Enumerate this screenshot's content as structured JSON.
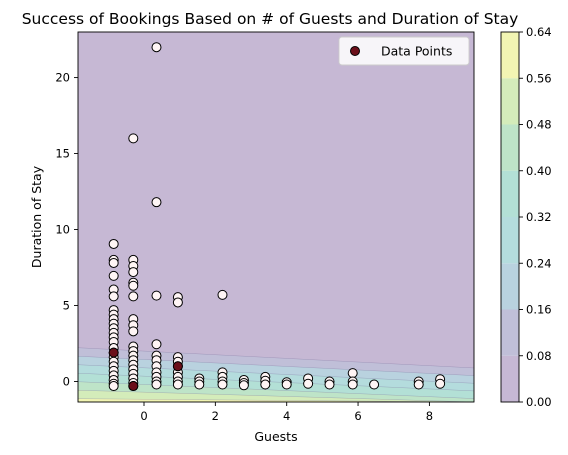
{
  "chart_data": {
    "type": "scatter",
    "title": "Success of Bookings Based on # of Guests and Duration of Stay",
    "xlabel": "Guests",
    "ylabel": "Duration of Stay",
    "xlim": [
      -1.85,
      9.25
    ],
    "ylim": [
      -1.35,
      23.0
    ],
    "xticks": [
      0,
      2,
      4,
      6,
      8
    ],
    "xtick_labels": [
      "0",
      "2",
      "4",
      "6",
      "8"
    ],
    "yticks": [
      0,
      5,
      10,
      15,
      20
    ],
    "ytick_labels": [
      "0",
      "5",
      "10",
      "15",
      "20"
    ],
    "legend": {
      "label": "Data Points",
      "placement": "top-right"
    },
    "grid": false,
    "colorbar": {
      "ticks": [
        0.0,
        0.08,
        0.16,
        0.24,
        0.32,
        0.4,
        0.48,
        0.56,
        0.64
      ],
      "tick_labels": [
        "0.00",
        "0.08",
        "0.16",
        "0.24",
        "0.32",
        "0.40",
        "0.48",
        "0.56",
        "0.64"
      ],
      "colors": [
        "#c6b8d4",
        "#c0bfd8",
        "#b9d2df",
        "#b4dcdd",
        "#b3e0d6",
        "#bee4c8",
        "#d4ecba",
        "#f2f5b3"
      ]
    },
    "contour_levels": [
      0.08,
      0.16,
      0.24,
      0.32,
      0.4,
      0.48,
      0.56
    ],
    "points": [
      [
        -0.85,
        9.05
      ],
      [
        -0.85,
        8.0
      ],
      [
        -0.85,
        7.8
      ],
      [
        -0.85,
        6.95
      ],
      [
        -0.85,
        6.05
      ],
      [
        -0.85,
        5.6
      ],
      [
        -0.85,
        4.7
      ],
      [
        -0.85,
        4.4
      ],
      [
        -0.85,
        4.1
      ],
      [
        -0.85,
        3.8
      ],
      [
        -0.85,
        3.5
      ],
      [
        -0.85,
        3.2
      ],
      [
        -0.85,
        2.9
      ],
      [
        -0.85,
        2.6
      ],
      [
        -0.85,
        2.2
      ],
      [
        -0.85,
        1.9
      ],
      [
        -0.85,
        1.6
      ],
      [
        -0.85,
        1.3
      ],
      [
        -0.85,
        1.0
      ],
      [
        -0.85,
        0.7
      ],
      [
        -0.85,
        0.4
      ],
      [
        -0.85,
        0.1
      ],
      [
        -0.85,
        -0.15
      ],
      [
        -0.85,
        -0.3
      ],
      [
        -0.3,
        16.0
      ],
      [
        -0.3,
        8.0
      ],
      [
        -0.3,
        7.6
      ],
      [
        -0.3,
        7.2
      ],
      [
        -0.3,
        6.5
      ],
      [
        -0.3,
        6.3
      ],
      [
        -0.3,
        5.6
      ],
      [
        -0.3,
        4.1
      ],
      [
        -0.3,
        3.7
      ],
      [
        -0.3,
        3.3
      ],
      [
        -0.3,
        2.3
      ],
      [
        -0.3,
        2.0
      ],
      [
        -0.3,
        1.7
      ],
      [
        -0.3,
        1.4
      ],
      [
        -0.3,
        1.1
      ],
      [
        -0.3,
        0.8
      ],
      [
        -0.3,
        0.5
      ],
      [
        -0.3,
        0.2
      ],
      [
        -0.3,
        -0.1
      ],
      [
        -0.3,
        -0.3
      ],
      [
        0.35,
        22.0
      ],
      [
        0.35,
        11.8
      ],
      [
        0.35,
        5.65
      ],
      [
        0.35,
        2.45
      ],
      [
        0.35,
        1.7
      ],
      [
        0.35,
        1.4
      ],
      [
        0.35,
        1.0
      ],
      [
        0.35,
        0.6
      ],
      [
        0.35,
        0.3
      ],
      [
        0.35,
        0.0
      ],
      [
        0.35,
        -0.2
      ],
      [
        0.95,
        5.55
      ],
      [
        0.95,
        5.2
      ],
      [
        0.95,
        1.6
      ],
      [
        0.95,
        1.3
      ],
      [
        0.95,
        1.0
      ],
      [
        0.95,
        0.6
      ],
      [
        0.95,
        0.3
      ],
      [
        0.95,
        0.0
      ],
      [
        0.95,
        -0.2
      ],
      [
        1.55,
        0.2
      ],
      [
        1.55,
        0.0
      ],
      [
        1.55,
        -0.2
      ],
      [
        2.2,
        5.7
      ],
      [
        2.2,
        0.6
      ],
      [
        2.2,
        0.3
      ],
      [
        2.2,
        0.0
      ],
      [
        2.2,
        -0.2
      ],
      [
        2.8,
        0.1
      ],
      [
        2.8,
        -0.1
      ],
      [
        2.8,
        -0.25
      ],
      [
        3.4,
        0.3
      ],
      [
        3.4,
        0.05
      ],
      [
        3.4,
        -0.2
      ],
      [
        4.0,
        -0.05
      ],
      [
        4.0,
        -0.2
      ],
      [
        4.6,
        0.2
      ],
      [
        4.6,
        -0.15
      ],
      [
        5.2,
        0.0
      ],
      [
        5.2,
        -0.2
      ],
      [
        5.85,
        0.55
      ],
      [
        5.85,
        0.0
      ],
      [
        5.85,
        -0.2
      ],
      [
        6.45,
        -0.2
      ],
      [
        7.7,
        0.0
      ],
      [
        7.7,
        -0.2
      ],
      [
        8.3,
        0.15
      ],
      [
        8.3,
        -0.15
      ]
    ],
    "success_points": [
      [
        -0.3,
        -0.3
      ],
      [
        0.95,
        1.0
      ],
      [
        -0.85,
        1.9
      ]
    ]
  }
}
